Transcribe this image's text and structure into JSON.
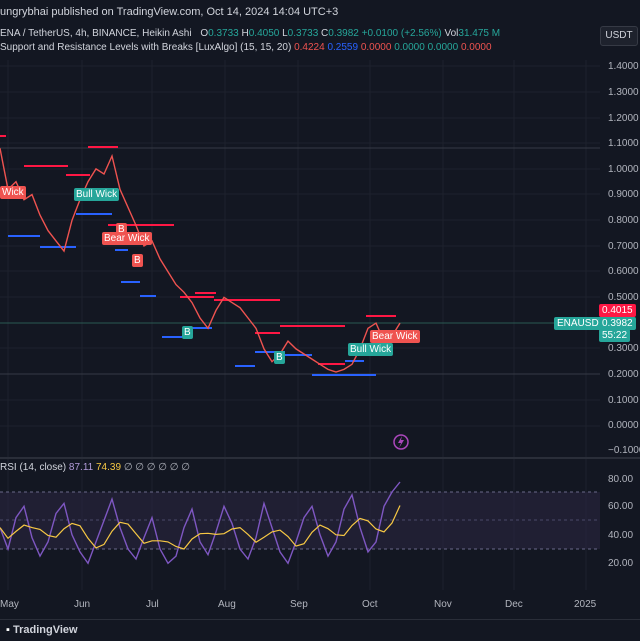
{
  "header": {
    "published": "ungrybhai published on TradingView.com, Oct 14, 2024 14:04 UTC+3",
    "currency_button": "USDT"
  },
  "legend": {
    "symbol": "ENA / TetherUS, 4h, BINANCE, Heikin Ashi",
    "o_label": "O",
    "o_value": "0.3733",
    "h_label": "H",
    "h_value": "0.4050",
    "l_label": "L",
    "l_value": "0.3733",
    "c_label": "C",
    "c_value": "0.3982",
    "change": "+0.0100 (+2.56%)",
    "vol_label": "Vol",
    "vol_value": "31.475 M",
    "indicator": "Support and Resistance Levels with Breaks [LuxAlgo] (15, 15, 20)",
    "ind_v1": "0.4224",
    "ind_v2": "0.2559",
    "ind_v3": "0.0000",
    "ind_v4": "0.0000",
    "ind_v5": "0.0000",
    "ind_v6": "0.0000"
  },
  "rsi_legend": {
    "name": "RSI (14, close)",
    "v1": "87.11",
    "v2": "74.39",
    "rest": "∅ ∅ ∅ ∅ ∅ ∅"
  },
  "price_axis": [
    "1.4000",
    "1.3000",
    "1.2000",
    "1.1000",
    "1.0000",
    "0.9000",
    "0.8000",
    "0.7000",
    "0.6000",
    "0.5000",
    "0.3000",
    "0.2000",
    "0.1000",
    "0.0000",
    "−0.1000"
  ],
  "price_tags": {
    "resistance": "0.4015",
    "symbol": "ENAUSDT",
    "last": "0.3982",
    "countdown": "55:22"
  },
  "rsi_axis": [
    "80.00",
    "60.00",
    "40.00",
    "20.00"
  ],
  "time_axis": [
    "May",
    "Jun",
    "Jul",
    "Aug",
    "Sep",
    "Oct",
    "Nov",
    "Dec",
    "2025"
  ],
  "chart_labels": {
    "wick": "Wick",
    "bull_wick": "Bull Wick",
    "bear_wick_1": "Bear Wick",
    "bear_wick_2": "Bear Wick",
    "bull_wick_2": "Bull Wick",
    "b": "B"
  },
  "footer": {
    "brand": "TradingView"
  },
  "colors": {
    "bg": "#131722",
    "up": "#26a69a",
    "down": "#ef5350",
    "resistance": "#ff1744",
    "support": "#2962ff",
    "rsi": "#7e57c2",
    "rsi_ma": "#f7c844"
  },
  "chart_data": {
    "type": "line",
    "price_series": [
      1.08,
      0.92,
      0.95,
      0.88,
      0.9,
      0.82,
      0.76,
      0.72,
      0.68,
      0.8,
      0.88,
      0.95,
      1.0,
      0.98,
      1.05,
      0.92,
      0.85,
      0.78,
      0.7,
      0.72,
      0.65,
      0.6,
      0.55,
      0.52,
      0.48,
      0.42,
      0.38,
      0.45,
      0.5,
      0.48,
      0.46,
      0.42,
      0.38,
      0.3,
      0.25,
      0.28,
      0.33,
      0.3,
      0.28,
      0.26,
      0.24,
      0.22,
      0.21,
      0.22,
      0.24,
      0.3,
      0.38,
      0.4,
      0.33,
      0.35,
      0.4
    ],
    "rsi_series": [
      55,
      40,
      62,
      70,
      48,
      35,
      45,
      65,
      72,
      50,
      38,
      30,
      45,
      60,
      75,
      55,
      40,
      33,
      48,
      62,
      40,
      30,
      35,
      55,
      68,
      45,
      36,
      52,
      70,
      58,
      40,
      33,
      48,
      72,
      55,
      38,
      30,
      45,
      62,
      70,
      50,
      35,
      45,
      68,
      78,
      55,
      38,
      45,
      70,
      80,
      87
    ]
  }
}
